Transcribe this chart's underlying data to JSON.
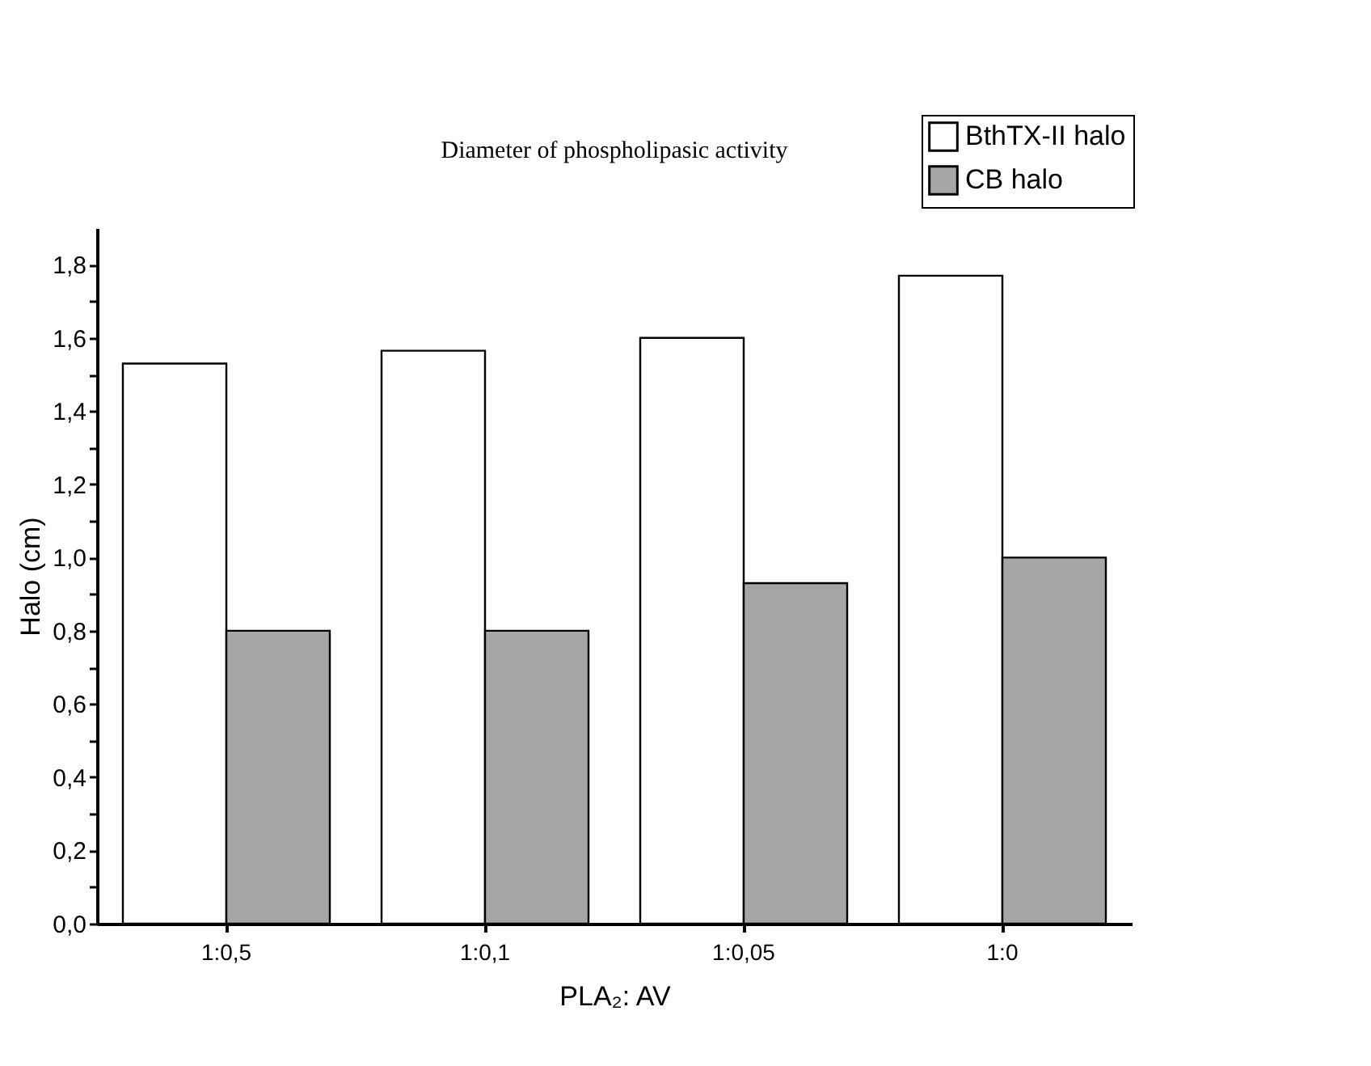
{
  "chart_data": {
    "type": "bar",
    "title": "Diameter of phospholipasic activity",
    "xlabel": "PLA₂: AV",
    "ylabel": "Halo (cm)",
    "categories": [
      "1:0,5",
      "1:0,1",
      "1:0,05",
      "1:0"
    ],
    "series": [
      {
        "name": "BthTX-II halo",
        "color": "#ffffff",
        "values": [
          1.53,
          1.565,
          1.6,
          1.77
        ]
      },
      {
        "name": "CB halo",
        "color": "#a6a6a6",
        "values": [
          0.8,
          0.8,
          0.93,
          1.0
        ]
      }
    ],
    "ylim": [
      0,
      1.9
    ],
    "yticks": [
      {
        "value": 0,
        "label": "0,0"
      },
      {
        "value": 0.1,
        "label": null
      },
      {
        "value": 0.2,
        "label": "0,2"
      },
      {
        "value": 0.3,
        "label": null
      },
      {
        "value": 0.4,
        "label": "0,4"
      },
      {
        "value": 0.5,
        "label": null
      },
      {
        "value": 0.6,
        "label": "0,6"
      },
      {
        "value": 0.7,
        "label": null
      },
      {
        "value": 0.8,
        "label": "0,8"
      },
      {
        "value": 0.9,
        "label": null
      },
      {
        "value": 1.0,
        "label": "1,0"
      },
      {
        "value": 1.1,
        "label": null
      },
      {
        "value": 1.2,
        "label": "1,2"
      },
      {
        "value": 1.3,
        "label": null
      },
      {
        "value": 1.4,
        "label": "1,4"
      },
      {
        "value": 1.5,
        "label": null
      },
      {
        "value": 1.6,
        "label": "1,6"
      },
      {
        "value": 1.7,
        "label": null
      },
      {
        "value": 1.8,
        "label": "1,8"
      }
    ],
    "grid": false,
    "legend": "top right"
  }
}
